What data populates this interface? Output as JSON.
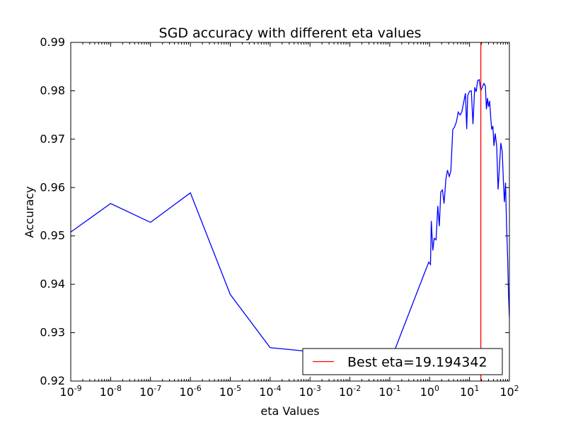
{
  "chart_data": {
    "type": "line",
    "title": "SGD accuracy with different eta values",
    "xlabel": "eta Values",
    "ylabel": "Accuracy",
    "xscale": "log10",
    "xlim": [
      1e-09,
      100
    ],
    "ylim": [
      0.92,
      0.99
    ],
    "grid": false,
    "x_ticks": [
      {
        "value": 1e-09,
        "base": "10",
        "exp": "-9"
      },
      {
        "value": 1e-08,
        "base": "10",
        "exp": "-8"
      },
      {
        "value": 1e-07,
        "base": "10",
        "exp": "-7"
      },
      {
        "value": 1e-06,
        "base": "10",
        "exp": "-6"
      },
      {
        "value": 1e-05,
        "base": "10",
        "exp": "-5"
      },
      {
        "value": 0.0001,
        "base": "10",
        "exp": "-4"
      },
      {
        "value": 0.001,
        "base": "10",
        "exp": "-3"
      },
      {
        "value": 0.01,
        "base": "10",
        "exp": "-2"
      },
      {
        "value": 0.1,
        "base": "10",
        "exp": "-1"
      },
      {
        "value": 1,
        "base": "10",
        "exp": "0"
      },
      {
        "value": 10,
        "base": "10",
        "exp": "1"
      },
      {
        "value": 100,
        "base": "10",
        "exp": "2"
      }
    ],
    "y_ticks": [
      {
        "value": 0.92,
        "label": "0.92"
      },
      {
        "value": 0.93,
        "label": "0.93"
      },
      {
        "value": 0.94,
        "label": "0.94"
      },
      {
        "value": 0.95,
        "label": "0.95"
      },
      {
        "value": 0.96,
        "label": "0.96"
      },
      {
        "value": 0.97,
        "label": "0.97"
      },
      {
        "value": 0.98,
        "label": "0.98"
      },
      {
        "value": 0.99,
        "label": "0.99"
      }
    ],
    "series": [
      {
        "color": "#0000ff",
        "points": [
          [
            1e-09,
            0.9508
          ],
          [
            1e-08,
            0.9567
          ],
          [
            1e-07,
            0.9528
          ],
          [
            1e-06,
            0.9589
          ],
          [
            1e-05,
            0.9379
          ],
          [
            0.0001,
            0.9269
          ],
          [
            0.001,
            0.9261
          ],
          [
            0.01,
            0.9258
          ],
          [
            0.13,
            0.9262
          ],
          [
            0.95,
            0.9446
          ],
          [
            1.05,
            0.9441
          ],
          [
            1.1,
            0.9531
          ],
          [
            1.2,
            0.947
          ],
          [
            1.3,
            0.9495
          ],
          [
            1.45,
            0.9492
          ],
          [
            1.6,
            0.9562
          ],
          [
            1.75,
            0.952
          ],
          [
            1.9,
            0.9591
          ],
          [
            2.1,
            0.9595
          ],
          [
            2.3,
            0.9567
          ],
          [
            2.55,
            0.9617
          ],
          [
            2.8,
            0.9636
          ],
          [
            3.1,
            0.9623
          ],
          [
            3.4,
            0.9634
          ],
          [
            3.8,
            0.972
          ],
          [
            4.2,
            0.9725
          ],
          [
            4.7,
            0.9736
          ],
          [
            5.2,
            0.9756
          ],
          [
            5.8,
            0.975
          ],
          [
            6.4,
            0.9756
          ],
          [
            7.1,
            0.9775
          ],
          [
            7.9,
            0.9795
          ],
          [
            8.5,
            0.9721
          ],
          [
            9.0,
            0.979
          ],
          [
            10.0,
            0.9799
          ],
          [
            11.1,
            0.98
          ],
          [
            12.2,
            0.9731
          ],
          [
            13.5,
            0.9807
          ],
          [
            14.7,
            0.9798
          ],
          [
            16.0,
            0.9821
          ],
          [
            17.5,
            0.9823
          ],
          [
            19.2,
            0.98
          ],
          [
            21.0,
            0.9808
          ],
          [
            23.0,
            0.9815
          ],
          [
            25.0,
            0.981
          ],
          [
            26.5,
            0.9762
          ],
          [
            28.2,
            0.9785
          ],
          [
            30.0,
            0.9767
          ],
          [
            32.0,
            0.9779
          ],
          [
            34.0,
            0.9745
          ],
          [
            36.0,
            0.972
          ],
          [
            38.5,
            0.9727
          ],
          [
            41.0,
            0.9686
          ],
          [
            44.0,
            0.9712
          ],
          [
            48.0,
            0.9686
          ],
          [
            52.0,
            0.9596
          ],
          [
            56.0,
            0.964
          ],
          [
            61.0,
            0.9692
          ],
          [
            66.0,
            0.9675
          ],
          [
            71.0,
            0.961
          ],
          [
            75.0,
            0.957
          ],
          [
            80.0,
            0.961
          ],
          [
            85.0,
            0.952
          ],
          [
            90.0,
            0.946
          ],
          [
            95.0,
            0.938
          ],
          [
            100.0,
            0.9331
          ]
        ]
      }
    ],
    "vline": {
      "x": 19.194342,
      "color": "#ff0000",
      "legend_label": "Best eta=19.194342"
    },
    "legend": {
      "position": "lower-right",
      "entries": [
        "Best eta=19.194342"
      ]
    }
  }
}
